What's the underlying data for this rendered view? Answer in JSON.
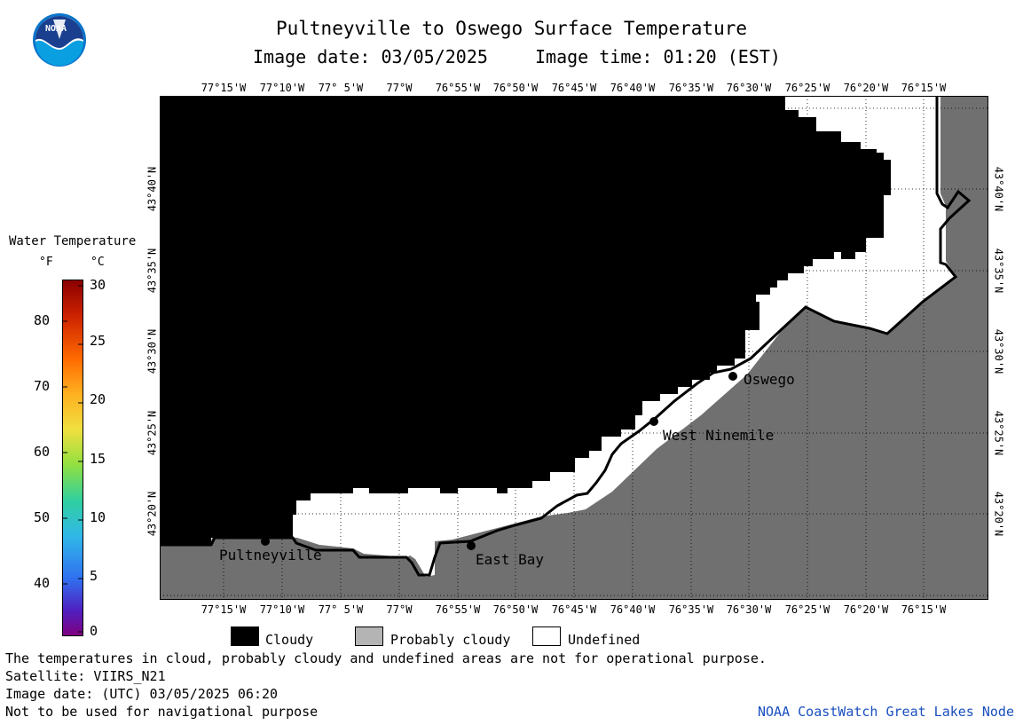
{
  "header": {
    "title": "Pultneyville to Oswego Surface Temperature",
    "image_date": "Image date: 03/05/2025",
    "image_time": "Image time: 01:20 (EST)"
  },
  "logo": {
    "text": "NOAA",
    "icon": "noaa-logo"
  },
  "map": {
    "lon_labels": [
      "77°15'W",
      "77°10'W",
      "77° 5'W",
      "77°W",
      "76°55'W",
      "76°50'W",
      "76°45'W",
      "76°40'W",
      "76°35'W",
      "76°30'W",
      "76°25'W",
      "76°20'W",
      "76°15'W"
    ],
    "lat_labels": [
      "43°40'N",
      "43°35'N",
      "43°30'N",
      "43°25'N",
      "43°20'N"
    ],
    "colors": {
      "cloudy": "#000000",
      "land": "#707070",
      "undefined": "#ffffff",
      "probably_cloudy": "#b4b4b4"
    },
    "cities": [
      {
        "name": "Pultneyville"
      },
      {
        "name": "East Bay"
      },
      {
        "name": "West Ninemile"
      },
      {
        "name": "Oswego"
      }
    ]
  },
  "scale": {
    "title": "Water Temperature",
    "unit_f": "°F",
    "unit_c": "°C",
    "f_ticks": [
      "80",
      "70",
      "60",
      "50",
      "40"
    ],
    "c_ticks": [
      "30",
      "25",
      "20",
      "15",
      "10",
      "5",
      "0"
    ]
  },
  "legend": {
    "cloudy": "Cloudy",
    "probably_cloudy": "Probably cloudy",
    "undefined": "Undefined"
  },
  "footer": {
    "note": "The temperatures in cloud, probably cloudy and undefined areas are not for operational purpose.",
    "satellite": "Satellite: VIIRS_N21",
    "utc_date": "Image date: (UTC) 03/05/2025  06:20",
    "nav_warning": "Not to be used for navigational purpose",
    "credit": "NOAA CoastWatch Great Lakes Node"
  }
}
